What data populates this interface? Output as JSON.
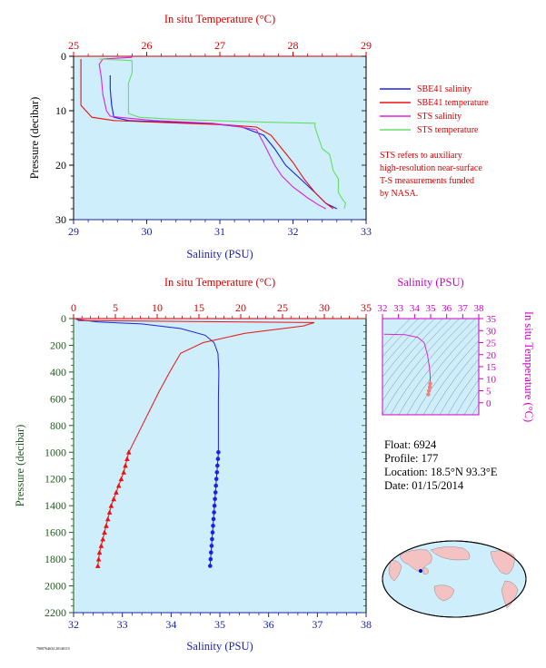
{
  "chart_data": [
    {
      "type": "line",
      "xlabel": "Salinity (PSU)",
      "x2label": "In situ Temperature (°C)",
      "ylabel": "Pressure (decibar)",
      "xlim": [
        29,
        33
      ],
      "x2lim": [
        25,
        29
      ],
      "ylim": [
        30,
        0
      ],
      "xticks": [
        "29",
        "30",
        "31",
        "32",
        "33"
      ],
      "x2ticks": [
        "25",
        "26",
        "27",
        "28",
        "29"
      ],
      "yticks": [
        "0",
        "10",
        "20",
        "30"
      ],
      "legend": [
        "SBE41 salinity",
        "SBE41 temperature",
        "STS salinity",
        "STS temperature"
      ],
      "note": [
        "STS refers to auxiliary",
        "high-resolution near-surface",
        "T-S measurements funded",
        "by NASA."
      ],
      "series": [
        {
          "name": "SBE41 salinity",
          "axis": "salinity",
          "color": "#1a22e0",
          "points": [
            [
              29.5,
              3.5
            ],
            [
              29.5,
              6
            ],
            [
              29.52,
              9
            ],
            [
              29.55,
              11.2
            ],
            [
              29.75,
              11.8
            ],
            [
              30.3,
              12.1
            ],
            [
              30.9,
              12.4
            ],
            [
              31.3,
              13
            ],
            [
              31.6,
              14.5
            ],
            [
              31.75,
              17
            ],
            [
              31.9,
              20
            ],
            [
              32.1,
              22.5
            ],
            [
              32.3,
              25
            ],
            [
              32.45,
              27
            ],
            [
              32.6,
              28
            ]
          ]
        },
        {
          "name": "SBE41 temperature",
          "axis": "temperature",
          "color": "#ee1111",
          "points": [
            [
              25.1,
              0.5
            ],
            [
              25.1,
              3
            ],
            [
              25.1,
              6
            ],
            [
              25.1,
              9
            ],
            [
              25.25,
              11.2
            ],
            [
              25.55,
              11.8
            ],
            [
              26.3,
              12.2
            ],
            [
              27.1,
              12.6
            ],
            [
              27.5,
              13
            ],
            [
              27.7,
              14.5
            ],
            [
              27.85,
              17
            ],
            [
              28.0,
              19.5
            ],
            [
              28.15,
              22.5
            ],
            [
              28.3,
              25
            ],
            [
              28.45,
              27
            ],
            [
              28.55,
              28
            ]
          ]
        },
        {
          "name": "STS salinity",
          "axis": "salinity",
          "color": "#dd22dd",
          "points": [
            [
              29.8,
              0.2
            ],
            [
              29.4,
              0.5
            ],
            [
              29.35,
              1.5
            ],
            [
              29.38,
              4
            ],
            [
              29.4,
              7
            ],
            [
              29.45,
              10
            ],
            [
              29.5,
              11
            ],
            [
              29.7,
              11.3
            ],
            [
              30.1,
              11.8
            ],
            [
              30.9,
              12.3
            ],
            [
              31.2,
              12.8
            ],
            [
              31.5,
              13.5
            ],
            [
              31.6,
              16
            ],
            [
              31.75,
              20
            ],
            [
              31.85,
              22
            ],
            [
              32.0,
              24
            ],
            [
              32.2,
              26
            ],
            [
              32.35,
              27.3
            ],
            [
              32.45,
              28
            ]
          ]
        },
        {
          "name": "STS temperature",
          "axis": "temperature",
          "color": "#66dd66",
          "points": [
            [
              25.35,
              0.5
            ],
            [
              25.8,
              0.8
            ],
            [
              25.8,
              3
            ],
            [
              25.75,
              5
            ],
            [
              25.75,
              8
            ],
            [
              25.75,
              10.5
            ],
            [
              25.9,
              11.2
            ],
            [
              26.4,
              11.6
            ],
            [
              27.6,
              12.1
            ],
            [
              28.3,
              12.3
            ],
            [
              28.3,
              13
            ],
            [
              28.35,
              15
            ],
            [
              28.4,
              17
            ],
            [
              28.5,
              18
            ],
            [
              28.55,
              21
            ],
            [
              28.62,
              22.5
            ],
            [
              28.62,
              25
            ],
            [
              28.68,
              26.3
            ],
            [
              28.72,
              27
            ],
            [
              28.7,
              28
            ]
          ]
        }
      ]
    },
    {
      "type": "line",
      "xlabel": "Salinity (PSU)",
      "x2label": "In situ Temperature (°C)",
      "ylabel": "Pressure (decibar)",
      "xlim": [
        32,
        38
      ],
      "x2lim": [
        0,
        35
      ],
      "ylim": [
        2200,
        0
      ],
      "xticks": [
        "32",
        "33",
        "34",
        "35",
        "36",
        "37",
        "38"
      ],
      "x2ticks": [
        "0",
        "5",
        "10",
        "15",
        "20",
        "25",
        "30",
        "35"
      ],
      "yticks": [
        "0",
        "200",
        "400",
        "600",
        "800",
        "1000",
        "1200",
        "1400",
        "1600",
        "1800",
        "2000",
        "2200"
      ],
      "series": [
        {
          "name": "Salinity",
          "axis": "salinity",
          "color": "#1a22e0",
          "marker": "circle",
          "points": [
            [
              32.05,
              5
            ],
            [
              32.5,
              25
            ],
            [
              33.4,
              40
            ],
            [
              34.2,
              75
            ],
            [
              34.7,
              125
            ],
            [
              34.88,
              180
            ],
            [
              34.96,
              260
            ],
            [
              34.98,
              400
            ],
            [
              34.97,
              600
            ],
            [
              34.97,
              800
            ],
            [
              34.97,
              1000
            ],
            [
              34.96,
              1050
            ],
            [
              34.95,
              1100
            ],
            [
              34.94,
              1150
            ],
            [
              34.93,
              1200
            ],
            [
              34.92,
              1250
            ],
            [
              34.91,
              1300
            ],
            [
              34.9,
              1350
            ],
            [
              34.89,
              1400
            ],
            [
              34.88,
              1450
            ],
            [
              34.87,
              1500
            ],
            [
              34.86,
              1550
            ],
            [
              34.85,
              1600
            ],
            [
              34.84,
              1650
            ],
            [
              34.83,
              1700
            ],
            [
              34.82,
              1750
            ],
            [
              34.81,
              1800
            ],
            [
              34.8,
              1850
            ]
          ]
        },
        {
          "name": "Temperature",
          "axis": "temperature",
          "color": "#ee1111",
          "marker": "triangle",
          "points": [
            [
              0.5,
              15
            ],
            [
              28.8,
              30
            ],
            [
              27.5,
              55
            ],
            [
              20.5,
              110
            ],
            [
              15.5,
              180
            ],
            [
              12.8,
              260
            ],
            [
              11.5,
              400
            ],
            [
              10.2,
              550
            ],
            [
              9.0,
              700
            ],
            [
              7.8,
              850
            ],
            [
              6.6,
              1000
            ],
            [
              6.4,
              1050
            ],
            [
              6.2,
              1100
            ],
            [
              6.0,
              1150
            ],
            [
              5.7,
              1200
            ],
            [
              5.4,
              1250
            ],
            [
              5.1,
              1300
            ],
            [
              4.8,
              1350
            ],
            [
              4.5,
              1400
            ],
            [
              4.3,
              1450
            ],
            [
              4.1,
              1500
            ],
            [
              3.9,
              1550
            ],
            [
              3.7,
              1600
            ],
            [
              3.5,
              1650
            ],
            [
              3.3,
              1700
            ],
            [
              3.1,
              1750
            ],
            [
              3.0,
              1800
            ],
            [
              2.9,
              1850
            ]
          ]
        }
      ]
    },
    {
      "type": "scatter",
      "title": "Salinity (PSU)",
      "ylabel": "In situ Temperature (°C)",
      "xlim": [
        32,
        38
      ],
      "ylim": [
        -5,
        35
      ],
      "xticks": [
        "32",
        "33",
        "34",
        "35",
        "36",
        "37",
        "38"
      ],
      "yticks": [
        "0",
        "5",
        "10",
        "15",
        "20",
        "25",
        "30",
        "35"
      ],
      "series": [
        {
          "name": "T-S",
          "color": "#dd22dd",
          "points": [
            [
              32.1,
              28.5
            ],
            [
              33.4,
              28.3
            ],
            [
              34.2,
              27.2
            ],
            [
              34.6,
              25
            ],
            [
              34.8,
              20
            ],
            [
              34.92,
              15
            ],
            [
              34.97,
              11.5
            ],
            [
              34.97,
              8
            ],
            [
              34.95,
              6.5
            ],
            [
              34.9,
              5
            ],
            [
              34.85,
              3.5
            ]
          ]
        }
      ]
    }
  ],
  "info": {
    "float": "Float:  6924",
    "profile": "Profile:  177",
    "location": "Location:  18.5°N  93.3°E",
    "date": "Date:  01/15/2014"
  },
  "footer_code": "7900764634 20140115",
  "colors": {
    "plot_bg": "#cdeefa",
    "salinity": "#1a22a8",
    "temperature": "#d40000",
    "ts": "#d000c8",
    "pressure": "#1f5a1f"
  }
}
